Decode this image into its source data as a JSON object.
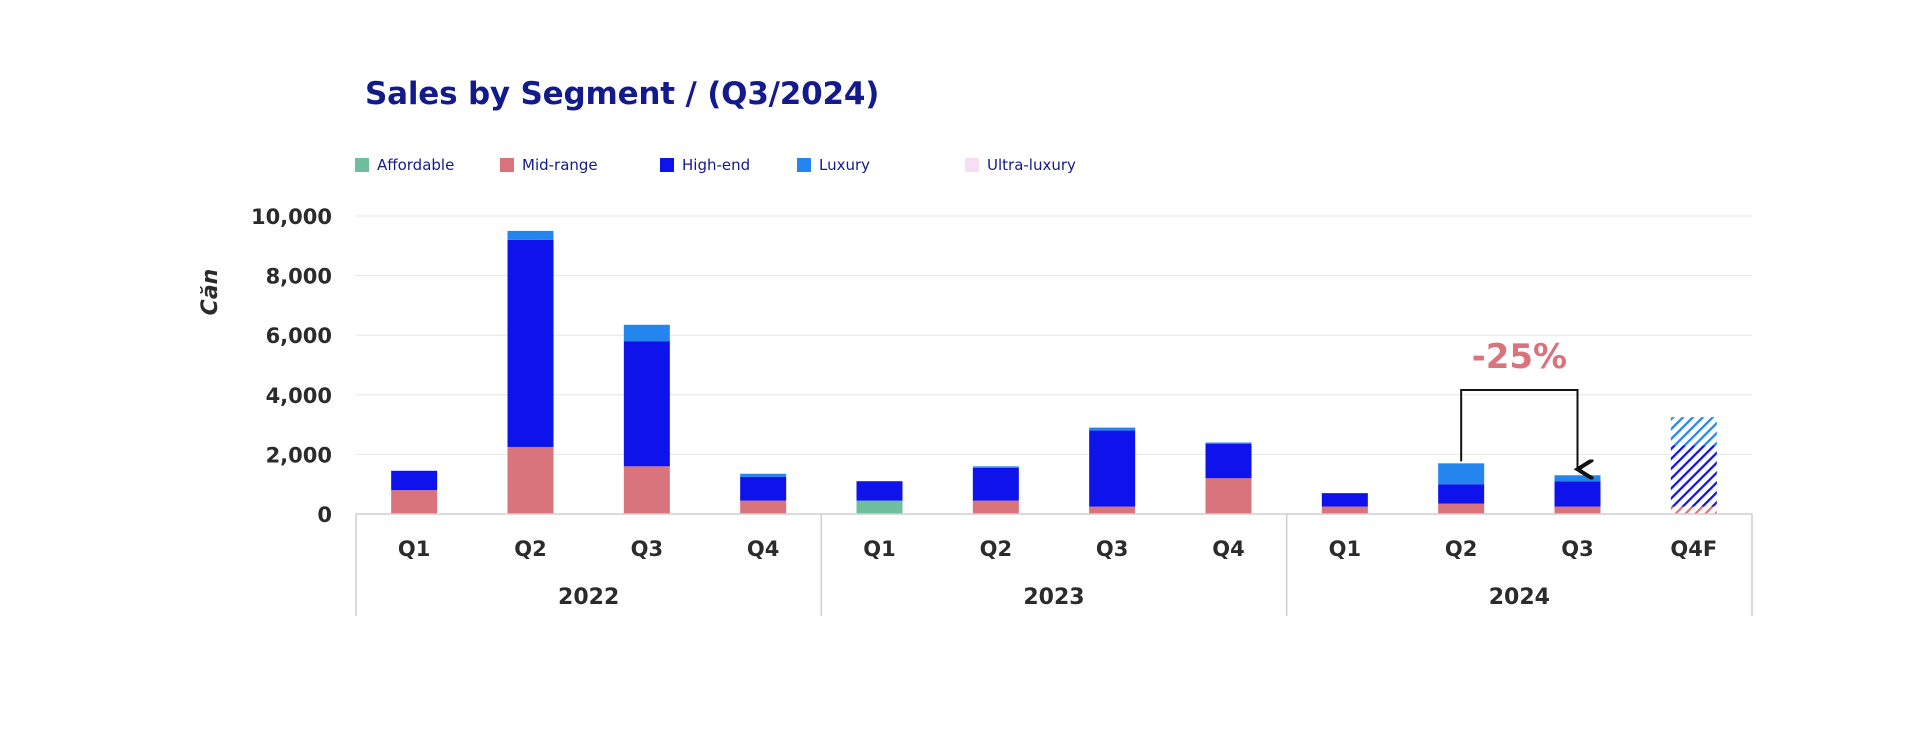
{
  "title": "Sales by Segment / (Q3/2024)",
  "colors": {
    "Affordable": "#6fbf9e",
    "Mid-range": "#d9747d",
    "High-end": "#0f13eb",
    "Luxury": "#2585ee",
    "Ultra-luxury": "#f7dff3",
    "title": "#131a8c",
    "annotation": "#d9747d"
  },
  "chart_data": {
    "type": "bar",
    "stacked": true,
    "title": "Sales by Segment / (Q3/2024)",
    "ylabel": "Căn",
    "ylim": [
      0,
      10000
    ],
    "yticks": [
      0,
      2000,
      4000,
      6000,
      8000,
      10000
    ],
    "ytick_labels": [
      "0",
      "2,000",
      "4,000",
      "6,000",
      "8,000",
      "10,000"
    ],
    "grid": true,
    "legend_position": "top-left",
    "categories": [
      "Q1",
      "Q2",
      "Q3",
      "Q4",
      "Q1",
      "Q2",
      "Q3",
      "Q4",
      "Q1",
      "Q2",
      "Q3",
      "Q4F"
    ],
    "groups": [
      {
        "label": "2022",
        "span": 4
      },
      {
        "label": "2023",
        "span": 4
      },
      {
        "label": "2024",
        "span": 4
      }
    ],
    "series": [
      {
        "name": "Affordable",
        "values": [
          0,
          0,
          0,
          0,
          450,
          0,
          0,
          0,
          0,
          0,
          0,
          0
        ]
      },
      {
        "name": "Mid-range",
        "values": [
          800,
          2250,
          1600,
          450,
          0,
          450,
          250,
          1200,
          250,
          350,
          250,
          250
        ]
      },
      {
        "name": "High-end",
        "values": [
          650,
          6950,
          4200,
          800,
          650,
          1100,
          2550,
          1150,
          450,
          650,
          850,
          2050
        ]
      },
      {
        "name": "Luxury",
        "values": [
          0,
          300,
          550,
          100,
          0,
          50,
          100,
          50,
          0,
          700,
          200,
          950
        ]
      },
      {
        "name": "Ultra-luxury",
        "values": [
          0,
          0,
          0,
          0,
          0,
          0,
          0,
          0,
          0,
          0,
          0,
          0
        ]
      }
    ],
    "forecast_categories": [
      "Q4F"
    ],
    "annotations": [
      {
        "text": "-25%",
        "from": "Q2 2024",
        "to": "Q3 2024"
      }
    ]
  }
}
